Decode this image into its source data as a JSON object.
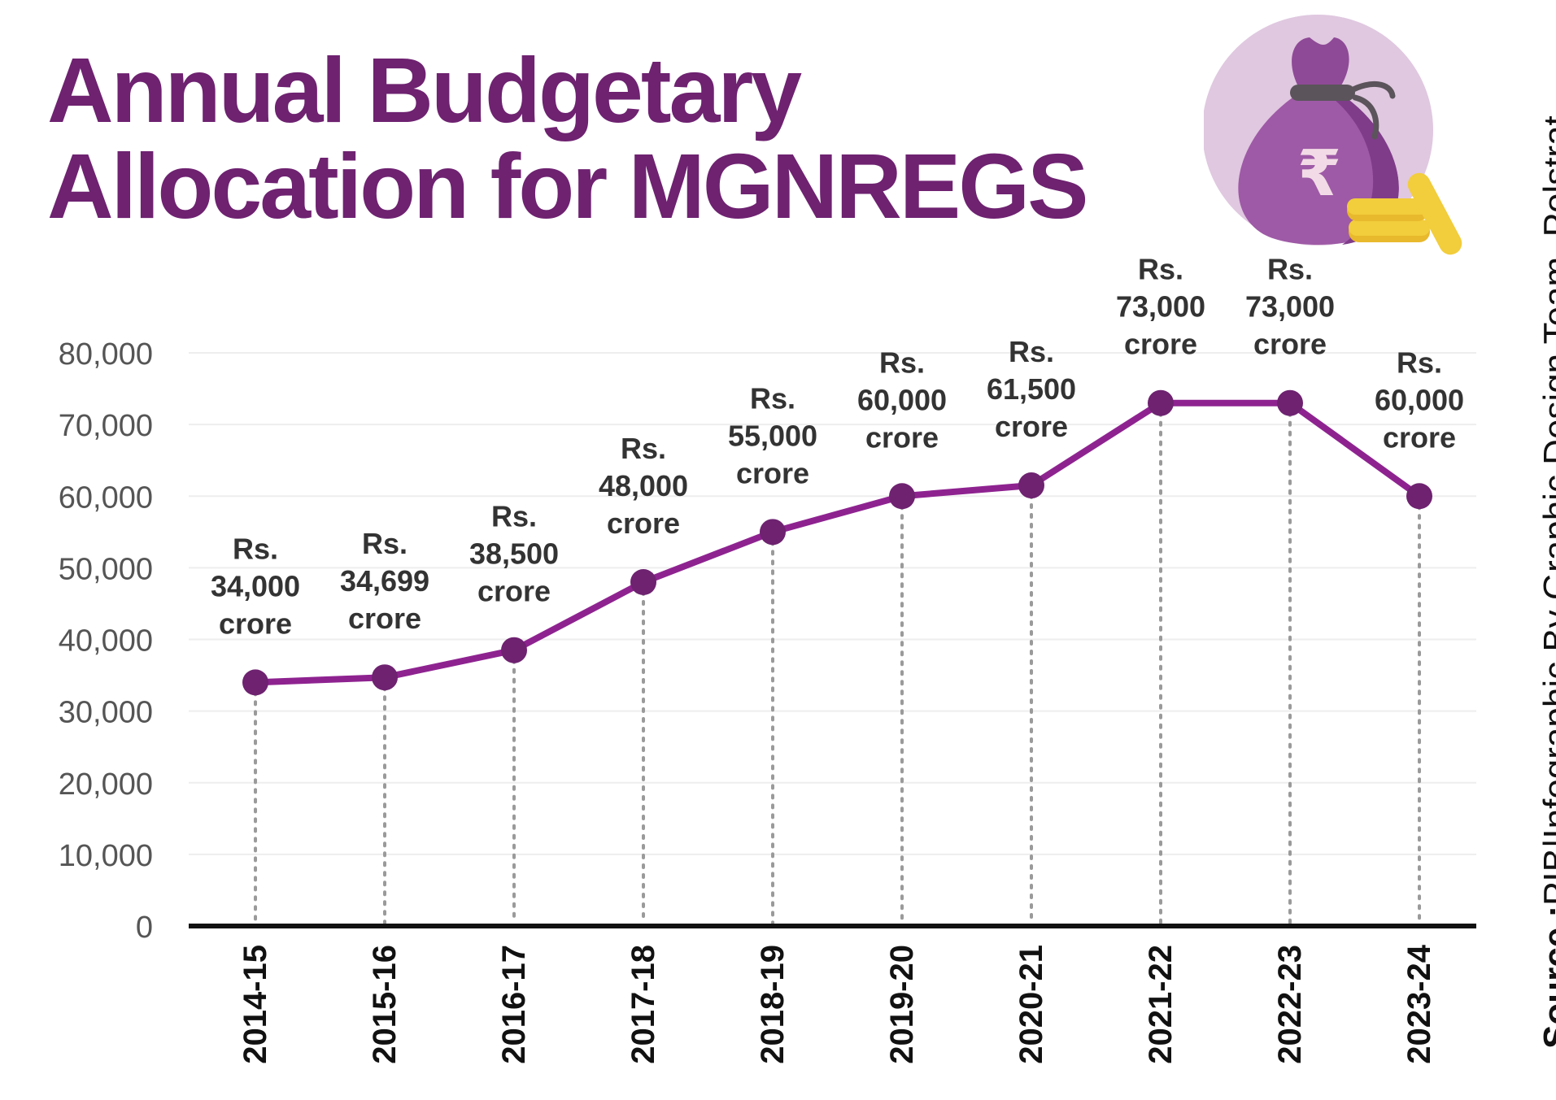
{
  "title": {
    "line1": "Annual Budgetary",
    "line2": "Allocation for MGNREGS"
  },
  "source": {
    "label": "Source :",
    "text": "PIB|Infographic By Graphic Design Team, Polstrat"
  },
  "icons": {
    "illustration": "money-bag-rupee-icon",
    "symbol": "₹"
  },
  "colors": {
    "accent": "#6e2270",
    "line": "#8e2390",
    "marker": "#6e2270",
    "bag": "#9e5aa6",
    "circle_bg": "#e0c8e0",
    "coins": "#f2cd3c",
    "label_text": "#333333",
    "axis_text": "#555555"
  },
  "chart_data": {
    "type": "line",
    "title": "Annual Budgetary Allocation for MGNREGS",
    "categories": [
      "2014-15",
      "2015-16",
      "2016-17",
      "2017-18",
      "2018-19",
      "2019-20",
      "2020-21",
      "2021-22",
      "2022-23",
      "2023-24"
    ],
    "series": [
      {
        "values": [
          34000,
          34699,
          38500,
          48000,
          55000,
          60000,
          61500,
          73000,
          73000,
          60000
        ]
      }
    ],
    "data_labels": [
      [
        "Rs.",
        "34,000",
        "crore"
      ],
      [
        "Rs.",
        "34,699",
        "crore"
      ],
      [
        "Rs.",
        "38,500",
        "crore"
      ],
      [
        "Rs.",
        "48,000",
        "crore"
      ],
      [
        "Rs.",
        "55,000",
        "crore"
      ],
      [
        "Rs.",
        "60,000",
        "crore"
      ],
      [
        "Rs.",
        "61,500",
        "crore"
      ],
      [
        "Rs.",
        "73,000",
        "crore"
      ],
      [
        "Rs.",
        "73,000",
        "crore"
      ],
      [
        "Rs.",
        "60,000",
        "crore"
      ]
    ],
    "y_ticks": [
      0,
      10000,
      20000,
      30000,
      40000,
      50000,
      60000,
      70000,
      80000
    ],
    "y_tick_labels": [
      "0",
      "10,000",
      "20,000",
      "30,000",
      "40,000",
      "50,000",
      "60,000",
      "70,000",
      "80,000"
    ],
    "ylim": [
      0,
      80000
    ],
    "xlabel": "",
    "ylabel": "",
    "grid": true,
    "legend": "none"
  }
}
